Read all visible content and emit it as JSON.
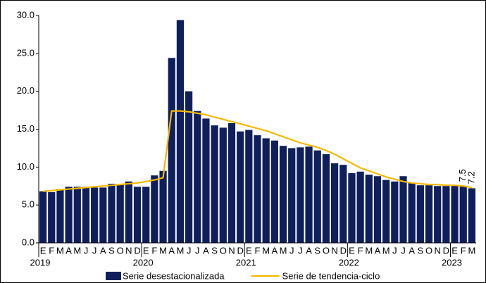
{
  "chart_data": {
    "type": "bar_line",
    "categories": [
      "E",
      "F",
      "M",
      "A",
      "M",
      "J",
      "J",
      "A",
      "S",
      "O",
      "N",
      "D",
      "E",
      "F",
      "M",
      "A",
      "M",
      "J",
      "J",
      "A",
      "S",
      "O",
      "N",
      "D",
      "E",
      "F",
      "M",
      "A",
      "M",
      "J",
      "J",
      "A",
      "S",
      "O",
      "N",
      "D",
      "E",
      "F",
      "M",
      "A",
      "M",
      "J",
      "J",
      "A",
      "S",
      "O",
      "N",
      "D",
      "E",
      "F",
      "M"
    ],
    "x_groups": [
      {
        "label": "2019",
        "count": 12
      },
      {
        "label": "2020",
        "count": 12
      },
      {
        "label": "2021",
        "count": 12
      },
      {
        "label": "2022",
        "count": 12
      },
      {
        "label": "2023",
        "count": 3
      }
    ],
    "series": [
      {
        "name": "Serie desestacionalizada",
        "kind": "bar",
        "color": "#0f1f5c",
        "values": [
          6.8,
          6.7,
          7.1,
          7.4,
          7.4,
          7.4,
          7.3,
          7.3,
          7.8,
          7.7,
          8.1,
          7.4,
          7.4,
          8.9,
          9.5,
          24.4,
          29.4,
          20.0,
          17.4,
          16.4,
          15.5,
          15.2,
          15.8,
          14.7,
          14.9,
          14.2,
          13.8,
          13.5,
          12.8,
          12.5,
          12.6,
          12.7,
          12.2,
          11.7,
          10.5,
          10.3,
          9.2,
          9.4,
          9.0,
          8.8,
          8.3,
          8.1,
          8.8,
          7.9,
          7.6,
          7.6,
          7.5,
          7.5,
          7.6,
          7.5,
          7.2
        ],
        "value_labels": [
          null,
          null,
          null,
          null,
          null,
          null,
          null,
          null,
          null,
          null,
          null,
          null,
          null,
          null,
          null,
          null,
          null,
          null,
          null,
          null,
          null,
          null,
          null,
          null,
          null,
          null,
          null,
          null,
          null,
          null,
          null,
          null,
          null,
          null,
          null,
          null,
          null,
          null,
          null,
          null,
          null,
          null,
          null,
          null,
          null,
          null,
          null,
          null,
          null,
          "7.5",
          "7.2"
        ]
      },
      {
        "name": "Serie de tendencia-ciclo",
        "kind": "line",
        "color": "#f5b800",
        "values": [
          6.8,
          6.9,
          7.0,
          7.1,
          7.2,
          7.3,
          7.4,
          7.5,
          7.6,
          7.7,
          7.8,
          7.9,
          8.1,
          8.3,
          8.6,
          17.4,
          17.4,
          17.3,
          17.1,
          16.9,
          16.6,
          16.3,
          16.0,
          15.7,
          15.4,
          15.1,
          14.8,
          14.4,
          14.0,
          13.6,
          13.2,
          12.9,
          12.6,
          12.2,
          11.7,
          11.1,
          10.5,
          9.9,
          9.5,
          9.1,
          8.7,
          8.4,
          8.1,
          7.9,
          7.8,
          7.7,
          7.7,
          7.6,
          7.6,
          7.5,
          7.3
        ]
      }
    ],
    "ylim": [
      0,
      30
    ],
    "yticks": [
      {
        "value": 0,
        "label": "0.0"
      },
      {
        "value": 5,
        "label": "5.0"
      },
      {
        "value": 10,
        "label": "10.0"
      },
      {
        "value": 15,
        "label": "15.0"
      },
      {
        "value": 20,
        "label": "20.0"
      },
      {
        "value": 25,
        "label": "25.0"
      },
      {
        "value": 30,
        "label": "30.0"
      }
    ],
    "legend": "bottom"
  }
}
